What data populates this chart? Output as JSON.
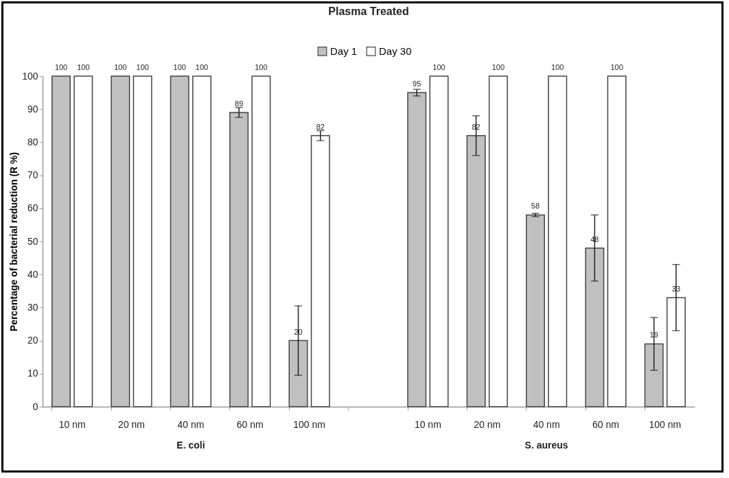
{
  "chart_data": {
    "type": "bar",
    "title": "Plasma Treated",
    "ylabel": "Percentage of bacterial reduction (R %)",
    "categories": [
      "10 nm",
      "20 nm",
      "40 nm",
      "60 nm",
      "100 nm",
      null,
      "10 nm",
      "20 nm",
      "40 nm",
      "60 nm",
      "100 nm"
    ],
    "series": [
      {
        "name": "Day 1",
        "color": "#c0c0c0",
        "values": [
          100,
          100,
          100,
          89,
          20,
          null,
          95,
          82,
          58,
          48,
          19
        ],
        "errors": [
          null,
          null,
          null,
          1.5,
          10.5,
          null,
          1,
          6,
          0.5,
          10,
          8
        ]
      },
      {
        "name": "Day 30",
        "color": "#ffffff",
        "values": [
          100,
          100,
          100,
          100,
          82,
          null,
          100,
          100,
          100,
          100,
          33
        ],
        "errors": [
          null,
          null,
          null,
          null,
          1.5,
          null,
          null,
          null,
          null,
          null,
          10
        ]
      }
    ],
    "ylim": [
      0,
      100
    ],
    "yticks": [
      0,
      10,
      20,
      30,
      40,
      50,
      60,
      70,
      80,
      90,
      100
    ],
    "grid": false,
    "legend": "top",
    "data_labels": true,
    "annotations": [
      "E. coli",
      "S. aureus"
    ]
  }
}
